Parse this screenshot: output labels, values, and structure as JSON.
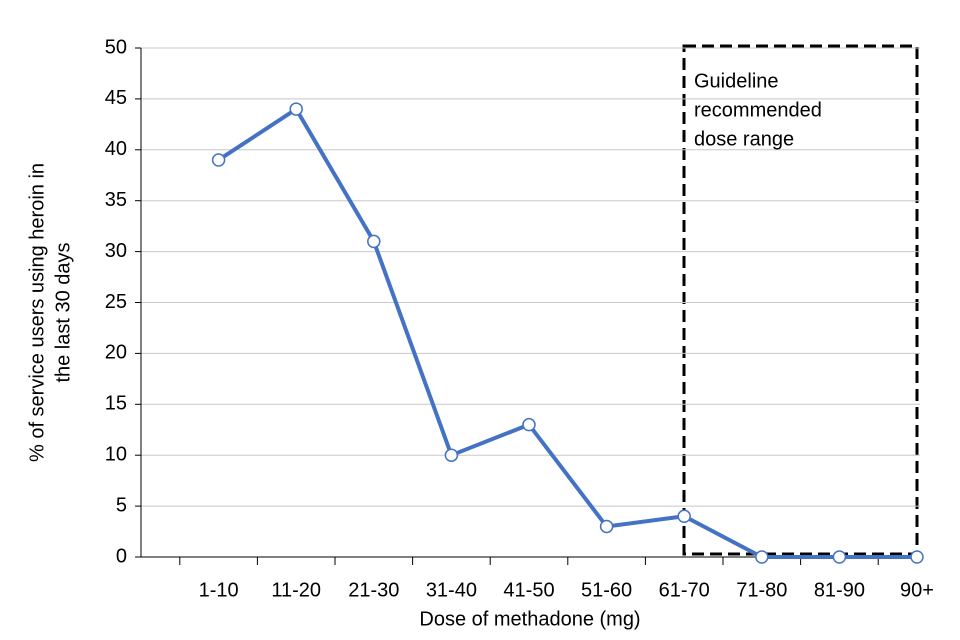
{
  "chart_data": {
    "type": "line",
    "xlabel": "Dose of methadone (mg)",
    "ylabel": [
      "% of service users using heroin in",
      "the last 30 days"
    ],
    "annotation": [
      "Guideline",
      "recommended",
      "dose range"
    ],
    "categories": [
      "1-10",
      "11-20",
      "21-30",
      "31-40",
      "41-50",
      "51-60",
      "61-70",
      "71-80",
      "81-90",
      "90+"
    ],
    "values": [
      39,
      44,
      31,
      10,
      13,
      3,
      4,
      0,
      0,
      0
    ],
    "color": "#4472c4",
    "ylim": [
      0,
      50
    ],
    "yticks": [
      0,
      5,
      10,
      15,
      20,
      25,
      30,
      35,
      40,
      45,
      50
    ],
    "grid": true
  }
}
